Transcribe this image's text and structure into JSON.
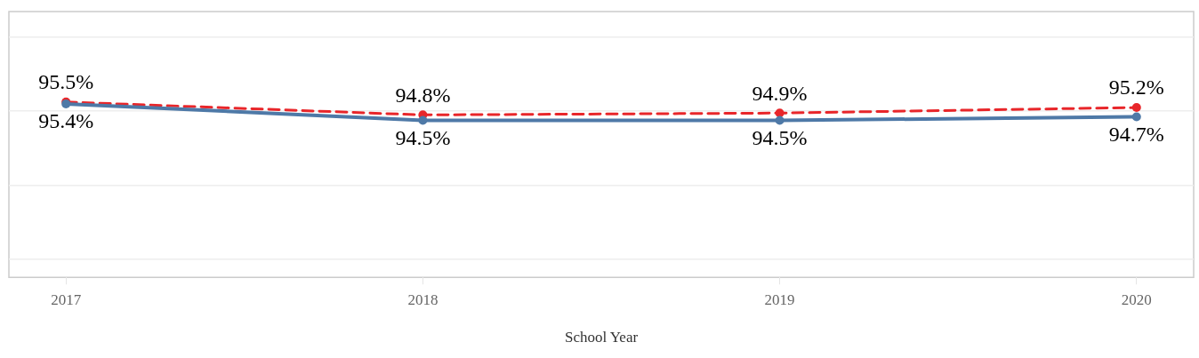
{
  "chart_data": {
    "type": "line",
    "xlabel": "School Year",
    "x": [
      2017,
      2018,
      2019,
      2020
    ],
    "xlim": [
      2016.84,
      2020.16
    ],
    "xticks": [
      2017,
      2018,
      2019,
      2020
    ],
    "ylim": [
      86,
      100.4
    ],
    "yticks": [
      {
        "value": 87,
        "label": null
      },
      {
        "value": 91,
        "label": null
      },
      {
        "value": 95,
        "label": null
      },
      {
        "value": 99,
        "label": null
      }
    ],
    "tick_labels": "x",
    "grid": "y",
    "legend": false,
    "marker": "circle",
    "series": [
      {
        "color": "#4e79a7",
        "line_style": "solid",
        "values": [
          95.4,
          94.5,
          94.5,
          94.7
        ],
        "value_labels": [
          "95.4%",
          "94.5%",
          "94.5%",
          "94.7%"
        ]
      },
      {
        "color": "#e8262a",
        "line_style": "dashed",
        "values": [
          95.5,
          94.8,
          94.9,
          95.2
        ],
        "value_labels": [
          "95.5%",
          "94.8%",
          "94.9%",
          "95.2%"
        ]
      }
    ]
  }
}
